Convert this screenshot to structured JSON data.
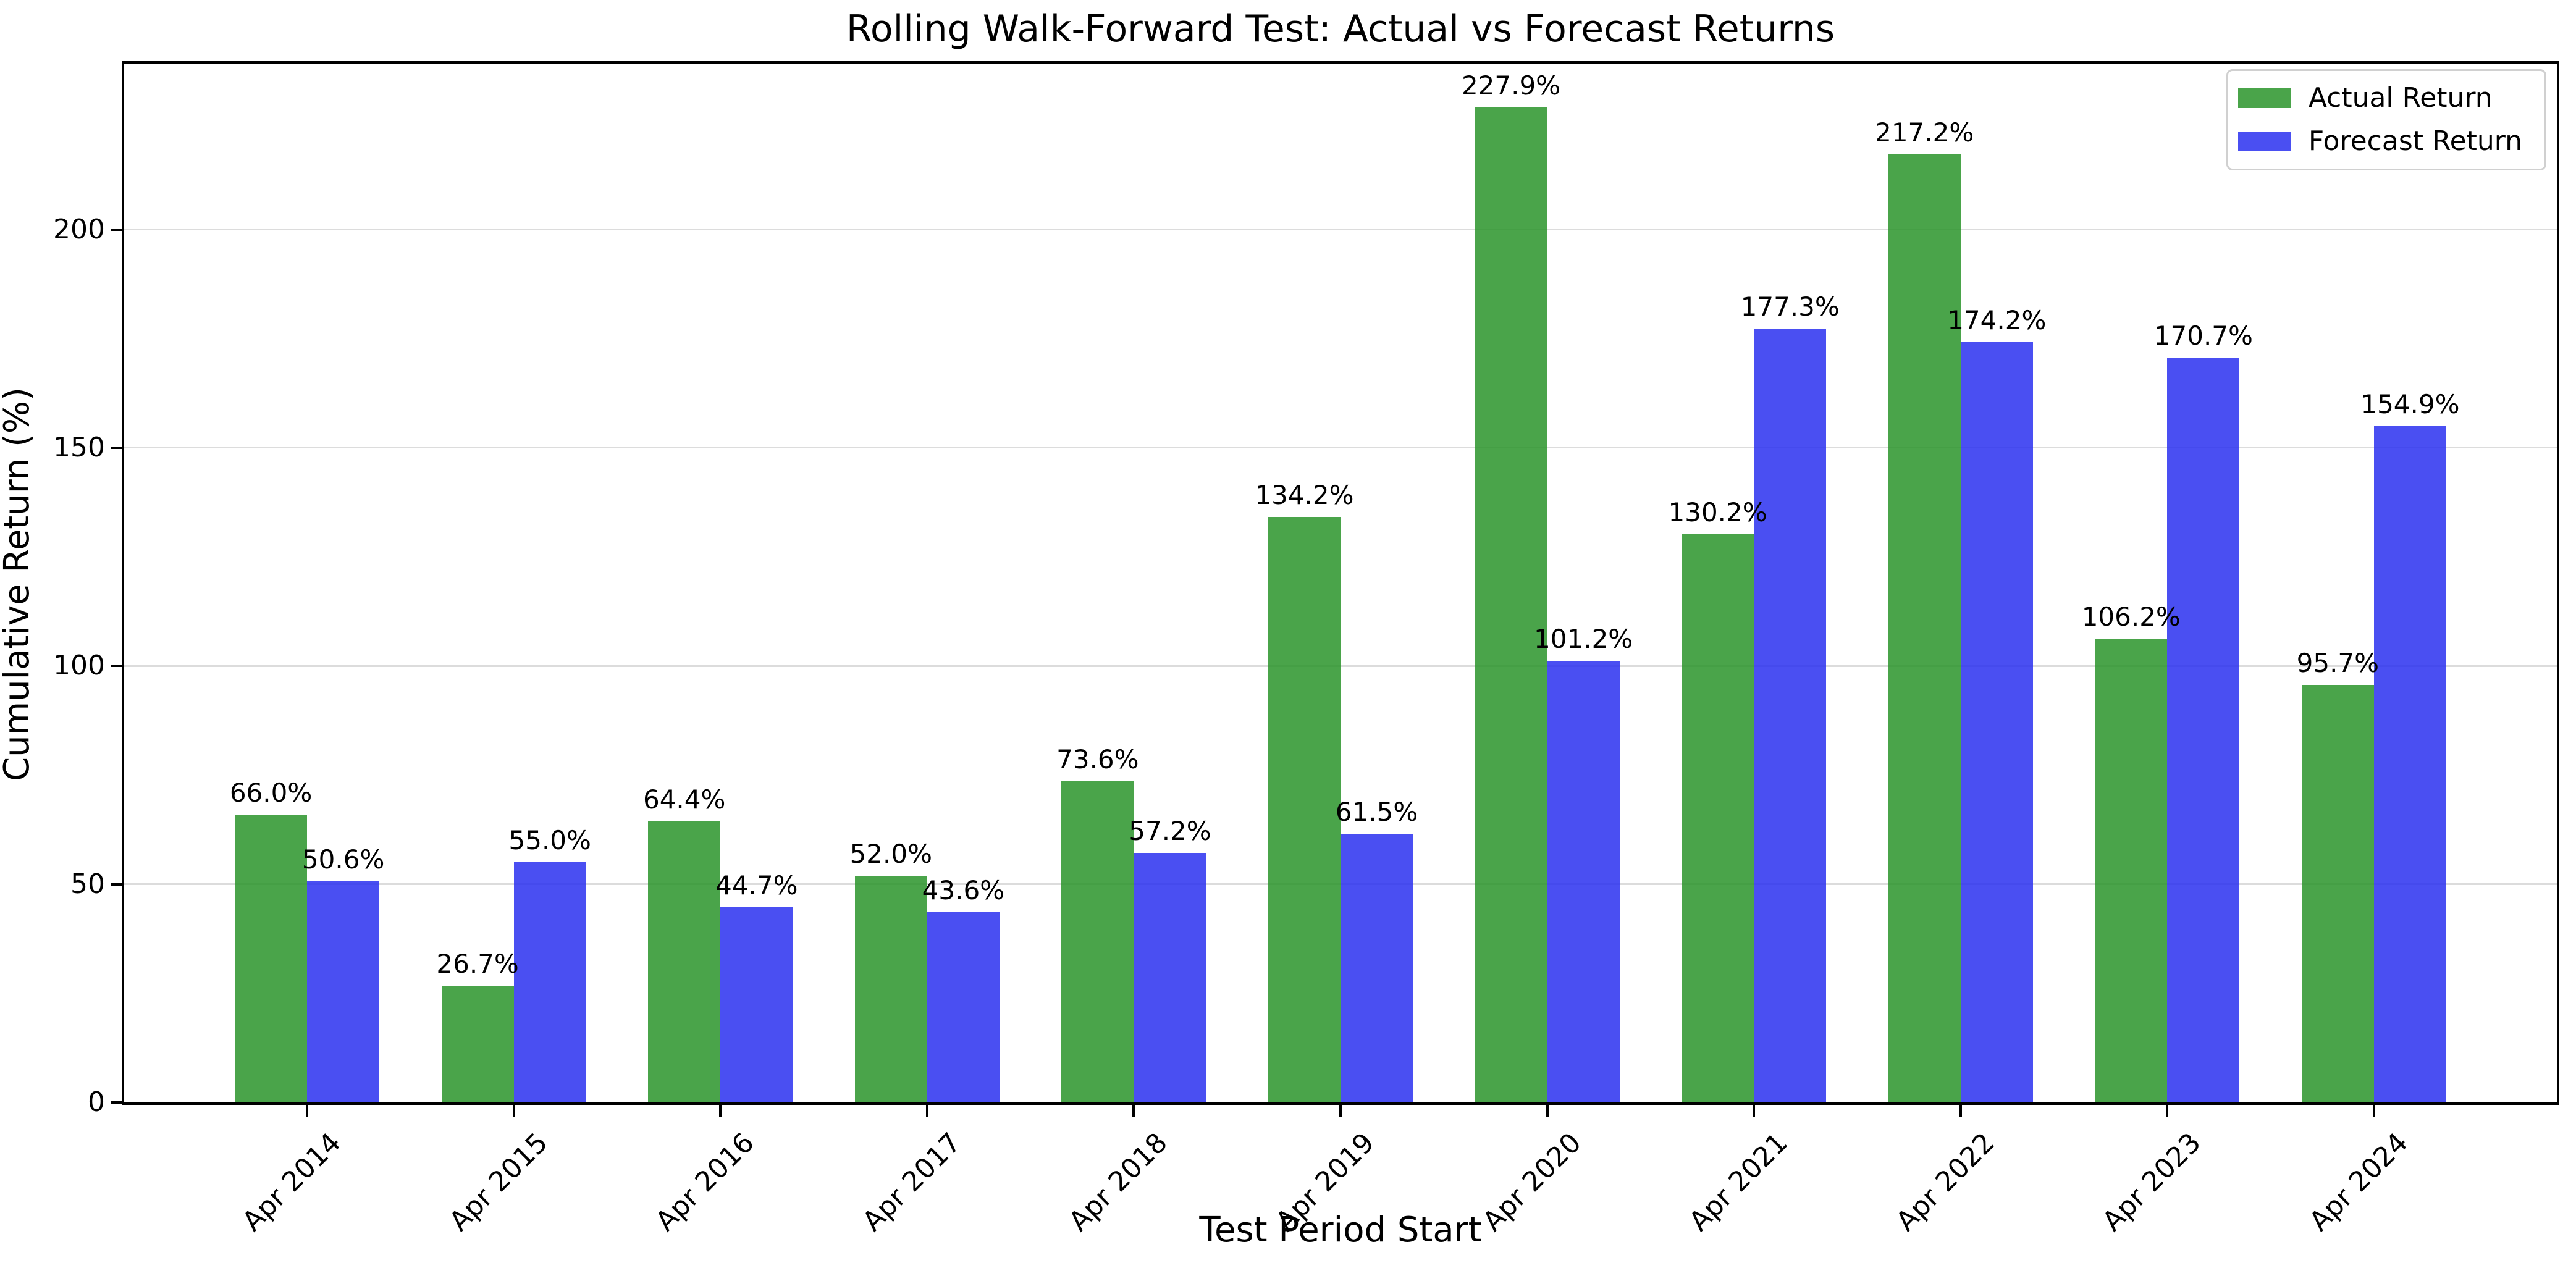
{
  "chart_data": {
    "type": "bar",
    "title": "Rolling Walk-Forward Test: Actual vs Forecast Returns",
    "xlabel": "Test Period Start",
    "ylabel": "Cumulative Return (%)",
    "categories": [
      "Apr 2014",
      "Apr 2015",
      "Apr 2016",
      "Apr 2017",
      "Apr 2018",
      "Apr 2019",
      "Apr 2020",
      "Apr 2021",
      "Apr 2022",
      "Apr 2023",
      "Apr 2024"
    ],
    "series": [
      {
        "name": "Actual Return",
        "color": "#2a942a",
        "values": [
          66.0,
          26.7,
          64.4,
          52.0,
          73.6,
          134.2,
          227.9,
          130.2,
          217.2,
          106.2,
          95.7
        ]
      },
      {
        "name": "Forecast Return",
        "color": "#2a30f0",
        "values": [
          50.6,
          55.0,
          44.7,
          43.6,
          57.2,
          61.5,
          101.2,
          177.3,
          174.2,
          170.7,
          154.9
        ]
      }
    ],
    "value_label_suffix": "%",
    "value_label_decimals": 1,
    "ylim": [
      0,
      238
    ],
    "yticks": [
      0,
      50,
      100,
      150,
      200
    ],
    "grid": true,
    "legend_position": "upper right",
    "bar_width_fraction": 0.35,
    "gridline_color": "#dcdcdc",
    "axis_color": "#000000"
  }
}
